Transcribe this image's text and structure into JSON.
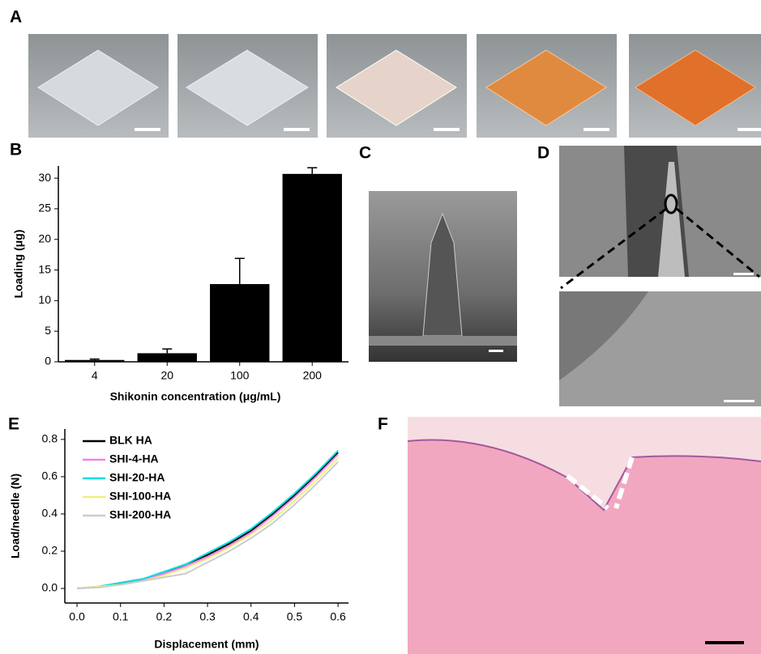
{
  "panel_labels": [
    "A",
    "B",
    "C",
    "D",
    "E",
    "F"
  ],
  "chart_data": [
    {
      "type": "bar",
      "categories": [
        "4",
        "20",
        "100",
        "200"
      ],
      "values": [
        0.3,
        1.4,
        12.7,
        30.7
      ],
      "errors": [
        0.15,
        0.7,
        4.2,
        1.0
      ],
      "color": "#000000",
      "ylim": [
        0,
        32
      ],
      "yticks": [
        0,
        5,
        10,
        15,
        20,
        25,
        30
      ],
      "y_label": "Loading (μg)",
      "x_label": "Shikonin concentration (μg/mL)"
    },
    {
      "type": "line",
      "x": [
        0,
        0.05,
        0.1,
        0.15,
        0.2,
        0.25,
        0.3,
        0.35,
        0.4,
        0.45,
        0.5,
        0.55,
        0.6
      ],
      "series": [
        {
          "name": "BLK HA",
          "color": "#000000",
          "values": [
            0,
            0.01,
            0.03,
            0.05,
            0.08,
            0.13,
            0.18,
            0.24,
            0.31,
            0.4,
            0.5,
            0.61,
            0.73
          ]
        },
        {
          "name": "SHI-4-HA",
          "color": "#ee82ee",
          "values": [
            0,
            0.01,
            0.025,
            0.045,
            0.08,
            0.12,
            0.17,
            0.23,
            0.3,
            0.39,
            0.49,
            0.6,
            0.72
          ]
        },
        {
          "name": "SHI-20-HA",
          "color": "#00e0e0",
          "values": [
            0,
            0.01,
            0.03,
            0.05,
            0.09,
            0.13,
            0.19,
            0.25,
            0.32,
            0.41,
            0.51,
            0.62,
            0.74
          ]
        },
        {
          "name": "SHI-100-HA",
          "color": "#f0ee80",
          "values": [
            0,
            0.01,
            0.02,
            0.04,
            0.07,
            0.11,
            0.16,
            0.22,
            0.29,
            0.37,
            0.47,
            0.58,
            0.7
          ]
        },
        {
          "name": "SHI-200-HA",
          "color": "#cccccc",
          "values": [
            0,
            0.005,
            0.02,
            0.04,
            0.06,
            0.08,
            0.14,
            0.2,
            0.27,
            0.35,
            0.45,
            0.56,
            0.68
          ]
        }
      ],
      "xlim": [
        -0.028,
        0.624
      ],
      "ylim": [
        -0.078,
        0.856
      ],
      "xticks": [
        {
          "value": 0,
          "label": "0.0"
        },
        0.1,
        0.2,
        0.3,
        0.4,
        0.5,
        0.6
      ],
      "yticks": [
        {
          "value": 0,
          "label": "0.0"
        },
        0.2,
        0.4,
        0.6,
        0.8
      ],
      "x_label": "Displacement (mm)",
      "y_label": "Load/needle (N)",
      "legend": "upper-left"
    }
  ]
}
